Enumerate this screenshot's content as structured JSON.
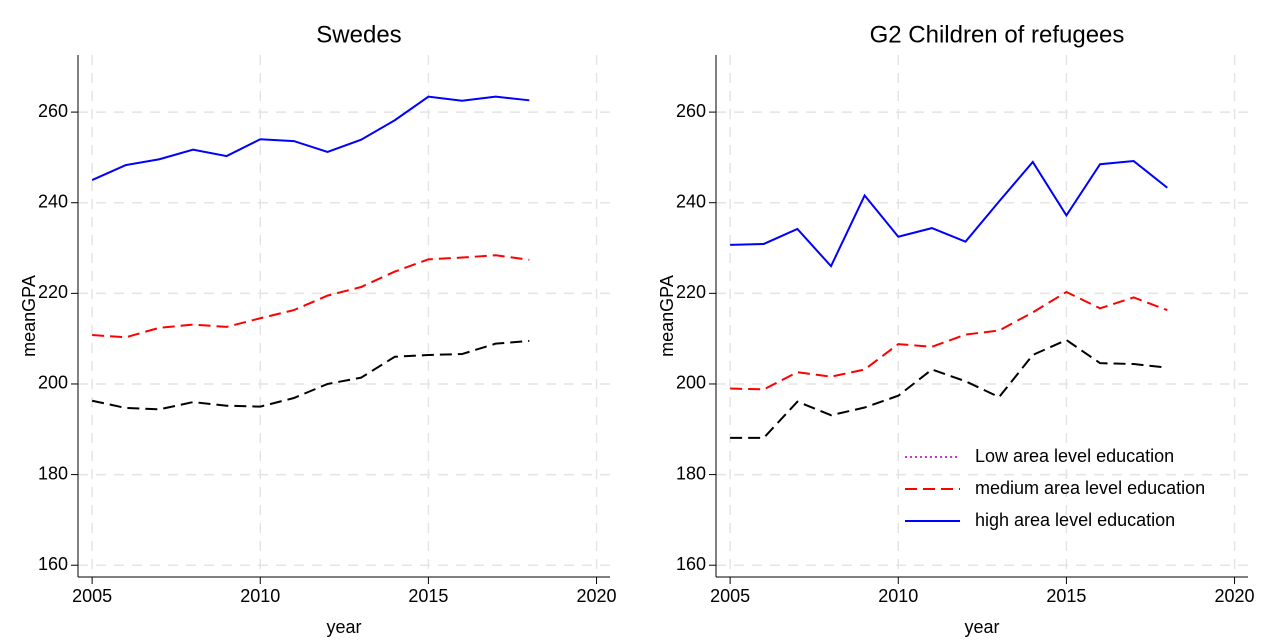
{
  "chart_data": [
    {
      "type": "line",
      "title": "Swedes",
      "xlabel": "year",
      "ylabel": "meanGPA",
      "x": [
        2005,
        2006,
        2007,
        2008,
        2009,
        2010,
        2011,
        2012,
        2013,
        2014,
        2015,
        2016,
        2017,
        2018
      ],
      "xlim": [
        2004.58,
        2020.4
      ],
      "xticks": [
        2005,
        2010,
        2015,
        2020
      ],
      "ylim": [
        157.4,
        272.6
      ],
      "yticks": [
        160,
        180,
        200,
        220,
        240,
        260
      ],
      "grid": true,
      "legend": false,
      "series": [
        {
          "color": "#000000",
          "dash": "dashed",
          "values": [
            196.3,
            194.7,
            194.4,
            196,
            195.2,
            195,
            196.9,
            200,
            201.4,
            206,
            206.4,
            206.6,
            208.9,
            209.5
          ]
        },
        {
          "color": "#ff0000",
          "dash": "dashed",
          "values": [
            210.8,
            210.3,
            212.4,
            213.1,
            212.6,
            214.5,
            216.3,
            219.5,
            221.4,
            224.8,
            227.5,
            227.9,
            228.4,
            227.4
          ]
        },
        {
          "color": "#0000ff",
          "dash": "solid",
          "values": [
            245,
            248.3,
            249.6,
            251.7,
            250.3,
            254,
            253.6,
            251.2,
            253.9,
            258.2,
            263.4,
            262.5,
            263.4,
            262.6
          ]
        }
      ]
    },
    {
      "type": "line",
      "title": "G2 Children of refugees",
      "xlabel": "year",
      "ylabel": "meanGPA",
      "x": [
        2005,
        2006,
        2007,
        2008,
        2009,
        2010,
        2011,
        2012,
        2013,
        2014,
        2015,
        2016,
        2017,
        2018
      ],
      "xlim": [
        2004.58,
        2020.4
      ],
      "xticks": [
        2005,
        2010,
        2015,
        2020
      ],
      "ylim": [
        157.4,
        272.6
      ],
      "yticks": [
        160,
        180,
        200,
        220,
        240,
        260
      ],
      "grid": true,
      "legend": "lower right",
      "series": [
        {
          "name": "Low area level education",
          "color": "#000000",
          "dash": "dashed",
          "legend_color": "#cc33cc",
          "legend_dash": "dotted",
          "values": [
            188.1,
            188.1,
            196.1,
            193.1,
            194.8,
            197.4,
            203.2,
            200.6,
            197.1,
            206.4,
            209.7,
            204.6,
            204.4,
            203.6
          ]
        },
        {
          "name": "medium area level education",
          "color": "#ff0000",
          "dash": "dashed",
          "values": [
            199,
            198.8,
            202.6,
            201.6,
            203.2,
            208.8,
            208.2,
            210.9,
            211.8,
            215.8,
            220.3,
            216.7,
            219.1,
            216.3
          ]
        },
        {
          "name": "high area level education",
          "color": "#0000ff",
          "dash": "solid",
          "values": [
            230.7,
            230.9,
            234.2,
            226,
            241.6,
            232.5,
            234.4,
            231.4,
            240.3,
            249,
            237.2,
            248.5,
            249.2,
            243.3
          ]
        }
      ]
    }
  ]
}
